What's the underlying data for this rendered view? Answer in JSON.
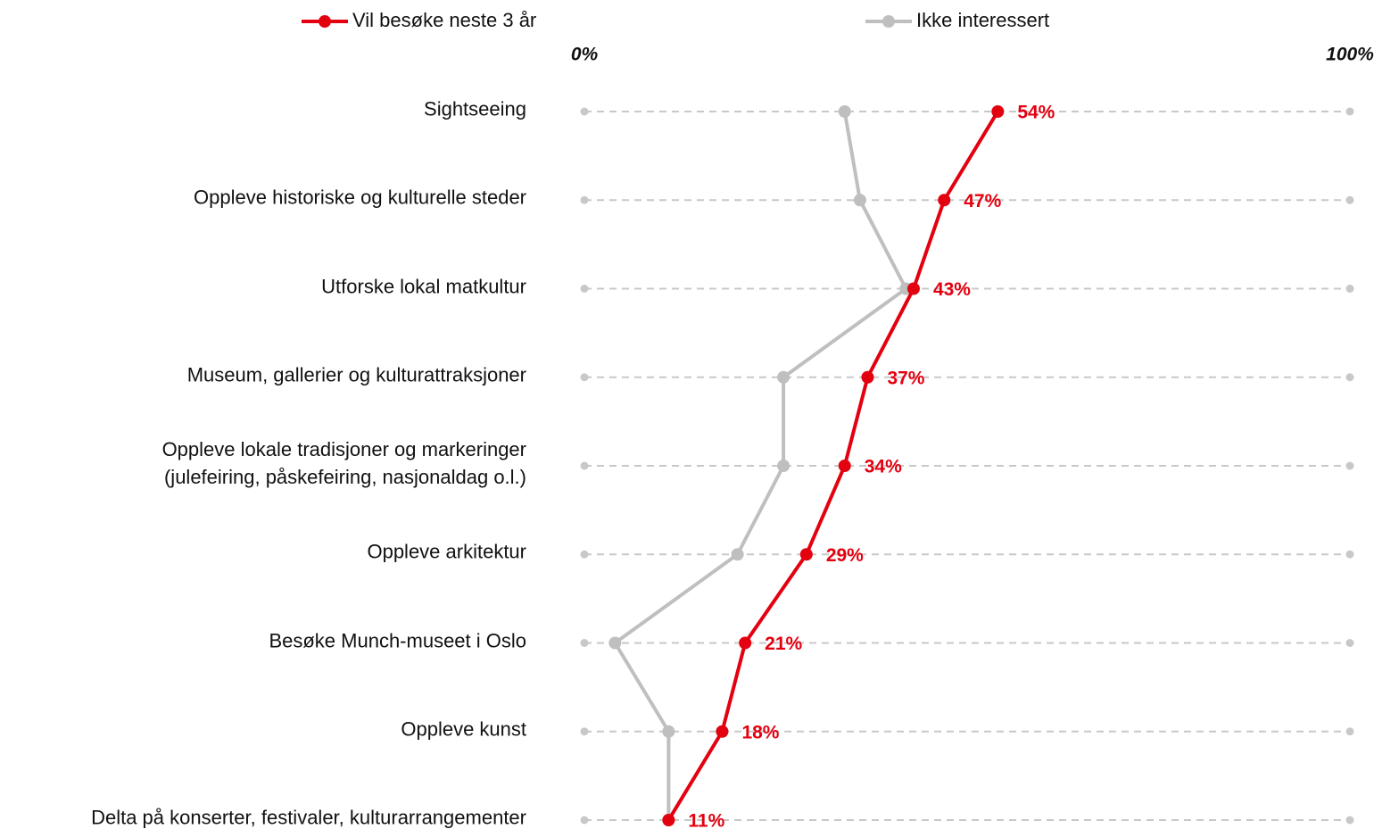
{
  "chart_data": {
    "type": "line",
    "orientation": "horizontal",
    "categories": [
      "Sightseeing",
      "Oppleve historiske og kulturelle steder",
      "Utforske lokal matkultur",
      "Museum, gallerier og kulturattraksjoner",
      "Oppleve lokale tradisjoner og markeringer\n(julefeiring, påskefeiring, nasjonaldag o.l.)",
      "Oppleve arkitektur",
      "Besøke Munch-museet i Oslo",
      "Oppleve kunst",
      "Delta på konserter, festivaler, kulturarrangementer"
    ],
    "series": [
      {
        "name": "Ikke interessert",
        "color": "#bfbfbf",
        "values": [
          34,
          36,
          42,
          26,
          26,
          20,
          4,
          11,
          11
        ]
      },
      {
        "name": "Vil besøke neste 3 år",
        "color": "#e3000f",
        "values": [
          54,
          47,
          43,
          37,
          34,
          29,
          21,
          18,
          11
        ],
        "value_labels": [
          "54%",
          "47%",
          "43%",
          "37%",
          "34%",
          "29%",
          "21%",
          "18%",
          "11%"
        ]
      }
    ],
    "xlim": [
      0,
      100
    ],
    "xticks": [
      {
        "value": 0,
        "label": "0%"
      },
      {
        "value": 100,
        "label": "100%"
      }
    ],
    "legend": "top"
  }
}
